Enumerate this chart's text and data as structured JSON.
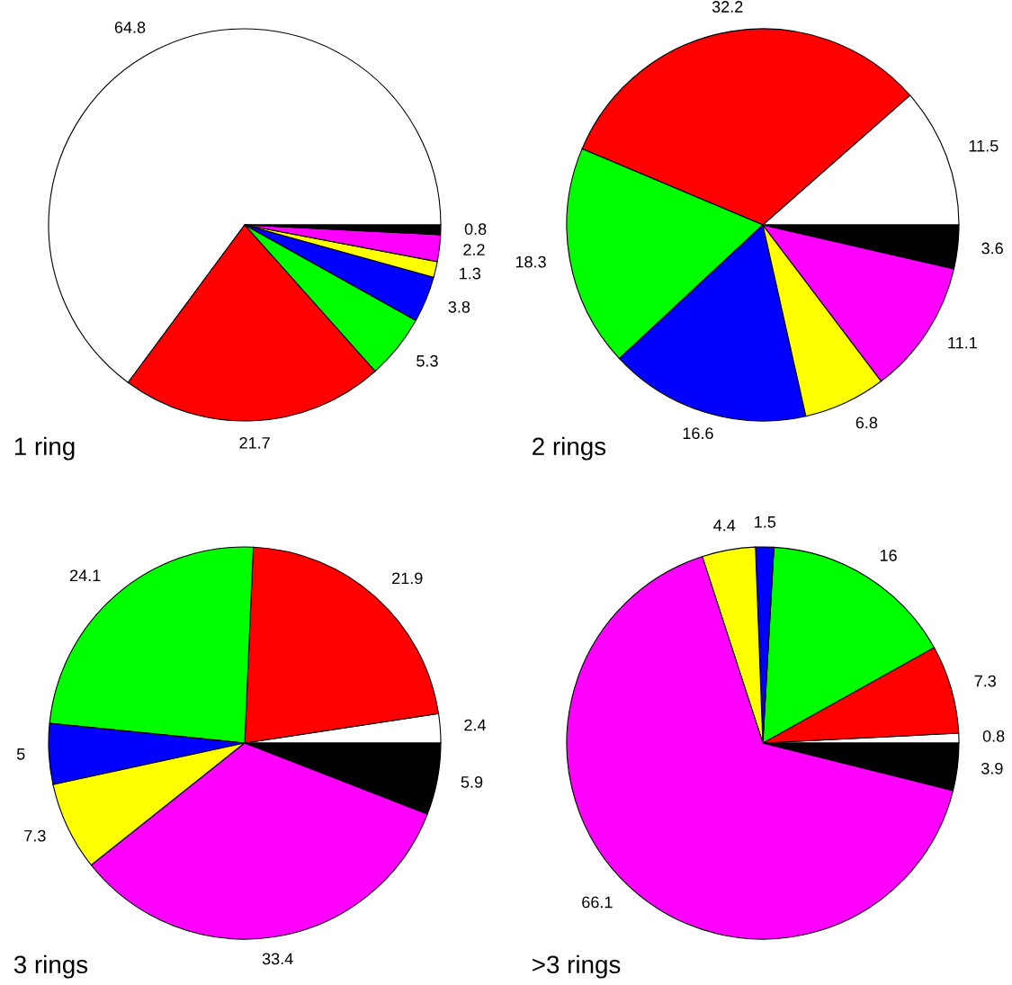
{
  "chart_data": [
    {
      "type": "pie",
      "title": "1 ring",
      "categories": [
        null,
        null,
        null,
        null,
        null,
        null,
        null
      ],
      "values": [
        64.8,
        21.7,
        5.3,
        3.8,
        1.3,
        2.2,
        0.8
      ],
      "colors": [
        "#ffffff",
        "#ff0000",
        "#00ff00",
        "#0000ff",
        "#ffff00",
        "#ff00ff",
        "#000000"
      ],
      "data_labels": true
    },
    {
      "type": "pie",
      "title": "2 rings",
      "categories": [
        null,
        null,
        null,
        null,
        null,
        null,
        null
      ],
      "values": [
        11.5,
        32.2,
        18.3,
        16.6,
        6.8,
        11.1,
        3.6
      ],
      "colors": [
        "#ffffff",
        "#ff0000",
        "#00ff00",
        "#0000ff",
        "#ffff00",
        "#ff00ff",
        "#000000"
      ],
      "data_labels": true
    },
    {
      "type": "pie",
      "title": "3 rings",
      "categories": [
        null,
        null,
        null,
        null,
        null,
        null,
        null
      ],
      "values": [
        2.4,
        21.9,
        24.1,
        5,
        7.3,
        33.4,
        5.9
      ],
      "colors": [
        "#ffffff",
        "#ff0000",
        "#00ff00",
        "#0000ff",
        "#ffff00",
        "#ff00ff",
        "#000000"
      ],
      "data_labels": true
    },
    {
      "type": "pie",
      "title": ">3 rings",
      "categories": [
        null,
        null,
        null,
        null,
        null,
        null,
        null
      ],
      "values": [
        0.8,
        7.3,
        16,
        1.5,
        4.4,
        66.1,
        3.9
      ],
      "colors": [
        "#ffffff",
        "#ff0000",
        "#00ff00",
        "#0000ff",
        "#ffff00",
        "#ff00ff",
        "#000000"
      ],
      "data_labels": true
    }
  ]
}
